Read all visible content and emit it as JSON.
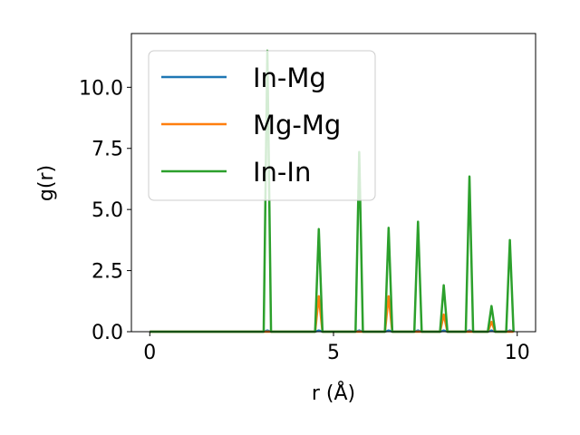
{
  "chart_data": {
    "type": "line",
    "title": "",
    "xlabel": "r (Å)",
    "ylabel": "g(r)",
    "xlim": [
      -0.5,
      10.5
    ],
    "ylim": [
      0,
      12.2
    ],
    "xticks": [
      0,
      5,
      10
    ],
    "xtick_labels": [
      "0",
      "5",
      "10"
    ],
    "yticks": [
      0,
      2.5,
      5,
      7.5,
      10
    ],
    "ytick_labels": [
      "0.0",
      "2.5",
      "5.0",
      "7.5",
      "10.0"
    ],
    "grid": false,
    "legend_position": "upper-left",
    "series": [
      {
        "name": "In-Mg",
        "color": "#1f77b4",
        "x": [
          0,
          3.1,
          3.2,
          3.3,
          4.5,
          4.6,
          4.7,
          5.6,
          5.7,
          5.8,
          6.4,
          6.5,
          6.6,
          7.2,
          7.3,
          7.4,
          7.9,
          8.0,
          8.1,
          8.6,
          8.7,
          8.8,
          9.2,
          9.3,
          9.4,
          9.7,
          9.8,
          9.9
        ],
        "y": [
          0,
          0,
          0.05,
          0,
          0,
          0.05,
          0,
          0,
          0.05,
          0,
          0,
          0.05,
          0,
          0,
          0.05,
          0,
          0,
          0.05,
          0,
          0,
          0.05,
          0,
          0,
          0.05,
          0,
          0,
          0.05,
          0
        ]
      },
      {
        "name": "Mg-Mg",
        "color": "#ff7f0e",
        "x": [
          0,
          4.5,
          4.6,
          4.7,
          6.4,
          6.5,
          6.6,
          7.9,
          8.0,
          8.1,
          9.2,
          9.3,
          9.4,
          9.9
        ],
        "y": [
          0,
          0,
          1.45,
          0,
          0,
          1.45,
          0,
          0,
          0.7,
          0,
          0,
          0.4,
          0,
          0
        ]
      },
      {
        "name": "In-In",
        "color": "#2ca02c",
        "x": [
          0,
          3.1,
          3.2,
          3.3,
          4.5,
          4.6,
          4.7,
          5.6,
          5.7,
          5.8,
          6.4,
          6.5,
          6.6,
          7.2,
          7.3,
          7.4,
          7.9,
          8.0,
          8.1,
          8.6,
          8.7,
          8.8,
          9.2,
          9.3,
          9.4,
          9.7,
          9.8,
          9.9
        ],
        "y": [
          0,
          0,
          11.5,
          0,
          0,
          4.2,
          0,
          0,
          7.35,
          0,
          0,
          4.25,
          0,
          0,
          4.5,
          0,
          0,
          1.9,
          0,
          0,
          6.35,
          0,
          0,
          1.05,
          0,
          0,
          3.75,
          0
        ]
      }
    ]
  }
}
